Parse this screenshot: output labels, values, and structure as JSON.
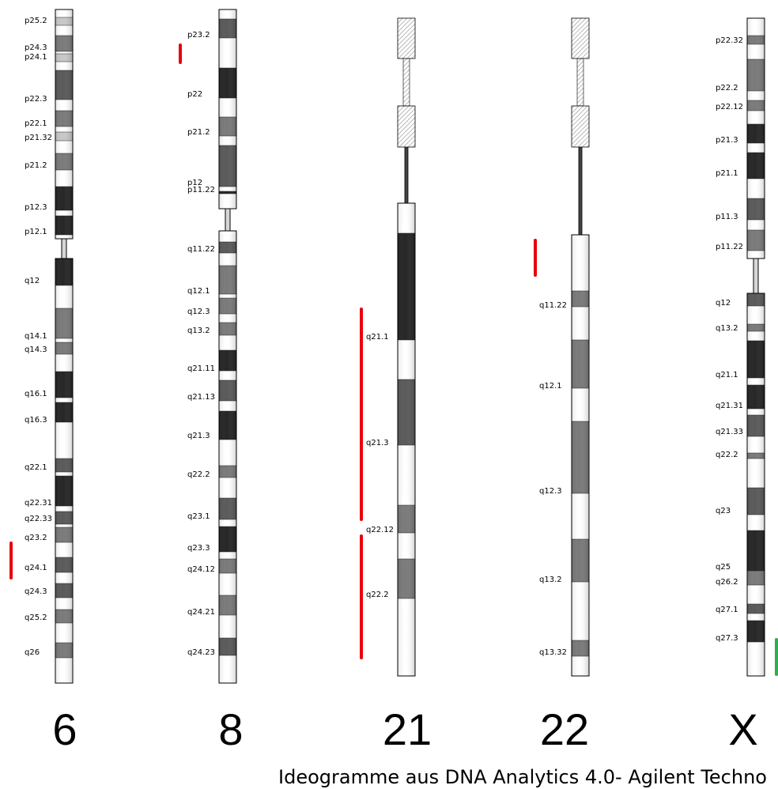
{
  "caption": "Ideogramme aus DNA Analytics 4.0- Agilent Techno",
  "colors": {
    "gneg": "#ffffff",
    "gpos25": "#c8c8c8",
    "gpos50": "#7a7a7a",
    "gpos75": "#5a5a5a",
    "gpos100": "#262626",
    "stalk": "#d6d6d6",
    "outline": "#000000",
    "marker_red": "#e8000b",
    "marker_green": "#2bb04a"
  },
  "chromosomes": [
    {
      "id": "6",
      "title": "6",
      "labels": [
        "p25.2",
        "p24.3",
        "p24.1",
        "p22.3",
        "p22.1",
        "p21.32",
        "p21.2",
        "p12.3",
        "p12.1",
        "q12",
        "q14.1",
        "q14.3",
        "q16.1",
        "q16.3",
        "q22.1",
        "q22.31",
        "q22.33",
        "q23.2",
        "q24.1",
        "q24.3",
        "q25.2",
        "q26"
      ]
    },
    {
      "id": "8",
      "title": "8",
      "labels": [
        "p23.2",
        "p22",
        "p21.2",
        "p12",
        "p11.22",
        "q11.22",
        "q12.1",
        "q12.3",
        "q13.2",
        "q21.11",
        "q21.13",
        "q21.3",
        "q22.2",
        "q23.1",
        "q23.3",
        "q24.12",
        "q24.21",
        "q24.23"
      ]
    },
    {
      "id": "21",
      "title": "21",
      "labels": [
        "q21.1",
        "q21.3",
        "q22.12",
        "q22.2"
      ]
    },
    {
      "id": "22",
      "title": "22",
      "labels": [
        "q11.22",
        "q12.1",
        "q12.3",
        "q13.2",
        "q13.32"
      ]
    },
    {
      "id": "X",
      "title": "X",
      "labels": [
        "p22.32",
        "p22.2",
        "p22.12",
        "p21.3",
        "p21.1",
        "p11.3",
        "p11.22",
        "q12",
        "q13.2",
        "q21.1",
        "q21.31",
        "q21.33",
        "q22.2",
        "q23",
        "q25",
        "q26.2",
        "q27.1",
        "q27.3"
      ]
    }
  ]
}
